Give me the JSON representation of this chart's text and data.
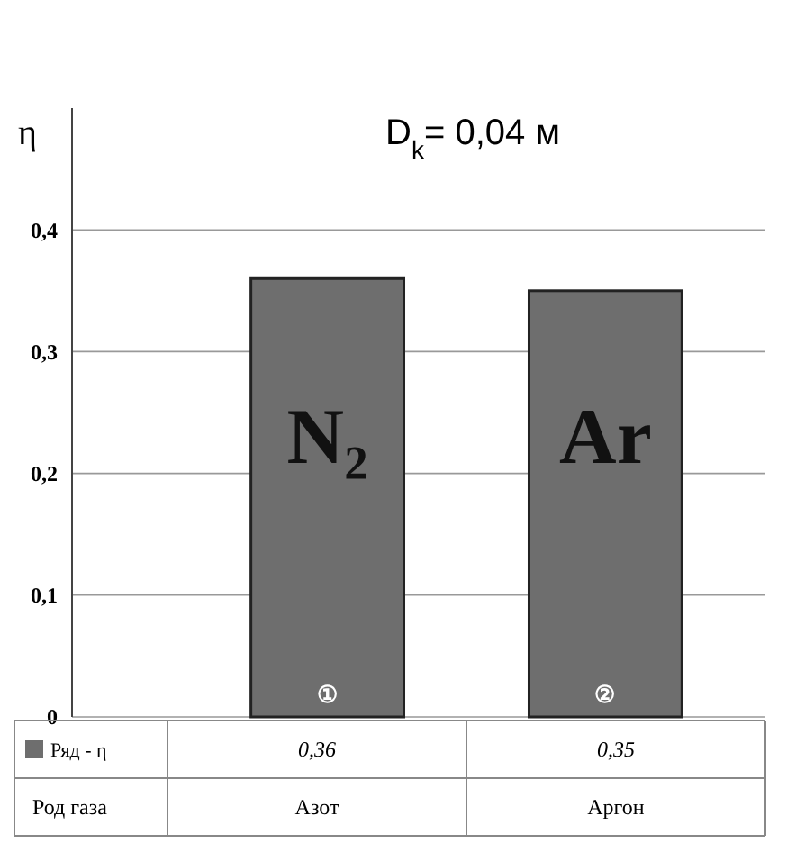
{
  "chart_data": {
    "type": "bar",
    "title": "D$_{k}$= 0,04 м",
    "ylabel": "η",
    "categories": [
      "Азот",
      "Аргон"
    ],
    "series": [
      {
        "name": "Ряд - η",
        "color": "#6e6e6e",
        "values": [
          0.36,
          0.35
        ],
        "value_labels": [
          "0,36",
          "0,35"
        ]
      }
    ],
    "ylim": [
      0,
      0.5
    ],
    "yticks": [
      0,
      {
        "value": 0.1,
        "label": "0,1"
      },
      {
        "value": 0.2,
        "label": "0,2"
      },
      {
        "value": 0.3,
        "label": "0,3"
      },
      {
        "value": 0.4,
        "label": "0,4"
      }
    ],
    "grid": "y",
    "legend": "bottom",
    "xlabel": "Род газа",
    "annotations": [
      "N₂",
      "Ar",
      "①",
      "②"
    ]
  }
}
